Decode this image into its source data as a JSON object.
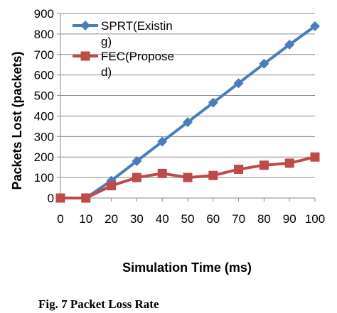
{
  "chart_data": {
    "type": "line",
    "xlabel": "Simulation Time (ms)",
    "ylabel": "Packets  Lost  (packets)",
    "x": [
      0,
      10,
      20,
      30,
      40,
      50,
      60,
      70,
      80,
      90,
      100
    ],
    "x_ticks": [
      0,
      10,
      20,
      30,
      40,
      50,
      60,
      70,
      80,
      90,
      100
    ],
    "y_ticks": [
      0,
      100,
      200,
      300,
      400,
      500,
      600,
      700,
      800,
      900
    ],
    "xlim": [
      0,
      100
    ],
    "ylim": [
      0,
      900
    ],
    "grid": "horizontal",
    "legend_position": "top-left",
    "series": [
      {
        "name_lines": [
          "SPRT(Existin",
          "g)"
        ],
        "color": "#4a7ebb",
        "marker": "diamond",
        "values": [
          0,
          0,
          85,
          180,
          275,
          370,
          465,
          560,
          655,
          748,
          838
        ]
      },
      {
        "name_lines": [
          "FEC(Propose",
          "d)"
        ],
        "color": "#be4b48",
        "marker": "square",
        "values": [
          0,
          0,
          60,
          100,
          120,
          100,
          110,
          140,
          160,
          170,
          200
        ]
      }
    ]
  },
  "caption": "Fig. 7 Packet Loss Rate"
}
